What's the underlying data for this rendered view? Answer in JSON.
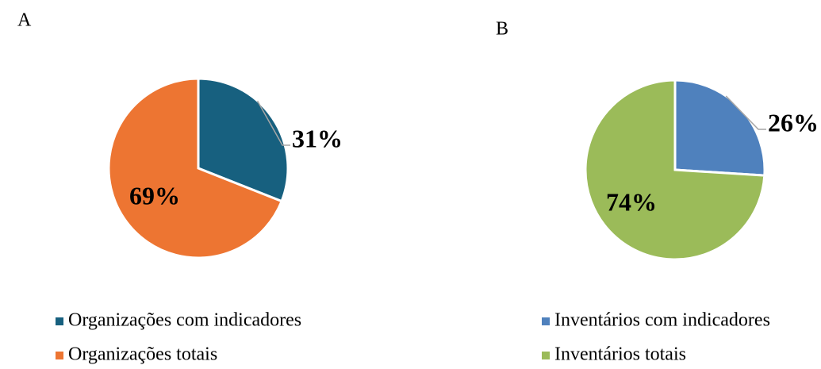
{
  "chart_data": [
    {
      "type": "pie",
      "title": "A",
      "categories": [
        "Organizações com indicadores",
        "Organizações totais"
      ],
      "values": [
        31,
        69
      ],
      "value_labels": [
        "31%",
        "69%"
      ],
      "colors": [
        "#17607f",
        "#ed7532"
      ]
    },
    {
      "type": "pie",
      "title": "B",
      "categories": [
        "Inventários com indicadores",
        "Inventários totais"
      ],
      "values": [
        26,
        74
      ],
      "value_labels": [
        "26%",
        "74%"
      ],
      "colors": [
        "#4f81bd",
        "#9bbb59"
      ]
    }
  ]
}
